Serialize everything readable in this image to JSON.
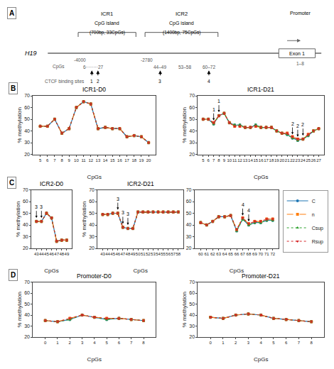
{
  "chart_data": [
    {
      "type": "diagram",
      "panel_label": "A",
      "annotations": [
        "H19",
        "Exon 1",
        "ICR1",
        "CpG island",
        "(700bp, 33CpGs)",
        "ICR2",
        "CpG island",
        "(1400bp, 75CpGs)",
        "Promoter",
        "-4000",
        "-2780",
        "1–8",
        "CpGs",
        "6········27",
        "44–49",
        "53–58",
        "60–72",
        "1",
        "2",
        "3",
        "4",
        "CTCF binding sites"
      ]
    },
    {
      "type": "line",
      "title": "ICR1-D0",
      "panel_label": "B",
      "xlabel": "CpGs",
      "ylabel": "% methylation",
      "grid": false,
      "x": [
        5,
        6,
        7,
        8,
        9,
        10,
        11,
        12,
        13,
        14,
        15,
        16,
        17,
        18,
        19,
        20
      ],
      "xlim": [
        4,
        21
      ],
      "xticks": [
        5,
        6,
        7,
        8,
        9,
        10,
        11,
        12,
        13,
        14,
        15,
        16,
        17,
        18,
        19,
        20
      ],
      "ylim": [
        20,
        70
      ],
      "yticks": [
        20,
        30,
        40,
        50,
        60,
        70
      ],
      "series": [
        {
          "name": "C",
          "color": "#1f77b4",
          "line_style": "solid",
          "marker": "circle",
          "error": 1,
          "values": [
            44,
            44,
            50,
            38,
            42,
            60,
            65,
            63,
            42,
            43,
            42,
            42,
            35,
            36,
            35,
            30
          ]
        },
        {
          "name": "n",
          "color": "#ff7f0e",
          "line_style": "dash",
          "marker": "square",
          "error": 1,
          "values": [
            44,
            44,
            50,
            38,
            42,
            60,
            65,
            63,
            42,
            43,
            42,
            42,
            35,
            36,
            35,
            30
          ]
        },
        {
          "name": "Csup",
          "color": "#2ca02c",
          "line_style": "dot",
          "marker": "triangle-up",
          "error": 1,
          "values": [
            44,
            44,
            50,
            38,
            42,
            60,
            65,
            63,
            42,
            43,
            42,
            42,
            35,
            36,
            35,
            30
          ]
        },
        {
          "name": "Rsup",
          "color": "#d62728",
          "line_style": "dot",
          "marker": "triangle-down",
          "error": 1,
          "values": [
            44,
            44,
            50,
            38,
            42,
            60,
            65,
            63,
            42,
            43,
            42,
            42,
            35,
            36,
            35,
            30
          ]
        }
      ]
    },
    {
      "type": "line",
      "title": "ICR1-D21",
      "xlabel": "CpGs",
      "ylabel": "% methylation",
      "grid": false,
      "x": [
        5,
        6,
        7,
        8,
        9,
        10,
        11,
        12,
        13,
        14,
        15,
        16,
        17,
        18,
        19,
        20,
        21,
        22,
        23,
        24,
        25,
        26,
        27
      ],
      "xlim": [
        4,
        28
      ],
      "xticks": [
        5,
        6,
        7,
        8,
        9,
        10,
        11,
        12,
        13,
        14,
        15,
        16,
        17,
        18,
        19,
        20,
        21,
        22,
        23,
        24,
        25,
        26,
        27
      ],
      "ylim": [
        20,
        70
      ],
      "yticks": [
        20,
        30,
        40,
        50,
        60,
        70
      ],
      "series": [
        {
          "name": "C",
          "color": "#1f77b4",
          "line_style": "solid",
          "marker": "circle",
          "error": 1,
          "values": [
            50,
            50,
            46,
            53,
            55,
            47,
            45,
            45,
            43,
            43,
            45,
            43,
            43,
            43,
            40,
            38,
            37,
            34,
            32,
            33,
            36,
            40,
            42
          ]
        },
        {
          "name": "n",
          "color": "#ff7f0e",
          "line_style": "dash",
          "marker": "square",
          "error": 1,
          "values": [
            50,
            50,
            47,
            53,
            55,
            47,
            44,
            44,
            43,
            43,
            44,
            43,
            43,
            43,
            40,
            38,
            38,
            35,
            33,
            33,
            37,
            40,
            42
          ]
        },
        {
          "name": "Csup",
          "color": "#2ca02c",
          "line_style": "dot",
          "marker": "triangle-up",
          "error": 1,
          "values": [
            50,
            50,
            46,
            53,
            55,
            47,
            45,
            45,
            43,
            43,
            45,
            43,
            43,
            43,
            40,
            38,
            37,
            34,
            32,
            33,
            36,
            40,
            42
          ]
        },
        {
          "name": "Rsup",
          "color": "#d62728",
          "line_style": "dot",
          "marker": "triangle-down",
          "error": 1,
          "values": [
            50,
            50,
            47,
            53,
            55,
            47,
            44,
            44,
            43,
            43,
            44,
            43,
            43,
            43,
            40,
            38,
            38,
            35,
            33,
            33,
            37,
            40,
            42
          ]
        }
      ],
      "annotations": [
        {
          "x": 7,
          "text": "1"
        },
        {
          "x": 8,
          "text": "1"
        },
        {
          "x": 22,
          "text": "2"
        },
        {
          "x": 23,
          "text": "2"
        },
        {
          "x": 24,
          "text": "2"
        }
      ]
    },
    {
      "type": "line",
      "title": "ICR2-D0",
      "panel_label": "C",
      "xlabel": "CpGs",
      "ylabel": "% methylation",
      "grid": false,
      "x": [
        43,
        44,
        45,
        46,
        47,
        48,
        49
      ],
      "xlim": [
        42,
        50
      ],
      "xticks": [
        43,
        44,
        45,
        46,
        47,
        48,
        49
      ],
      "ylim": [
        20,
        70
      ],
      "yticks": [
        20,
        30,
        40,
        50,
        60,
        70
      ],
      "series": [
        {
          "name": "C",
          "color": "#1f77b4",
          "line_style": "solid",
          "marker": "circle",
          "error": 1,
          "values": [
            43,
            43,
            50,
            46,
            26,
            27,
            27
          ]
        },
        {
          "name": "n",
          "color": "#ff7f0e",
          "line_style": "dash",
          "marker": "square",
          "error": 1,
          "values": [
            43,
            43,
            50,
            46,
            26,
            27,
            27
          ]
        },
        {
          "name": "Csup",
          "color": "#2ca02c",
          "line_style": "dot",
          "marker": "triangle-up",
          "error": 1,
          "values": [
            43,
            43,
            50,
            46,
            26,
            27,
            27
          ]
        },
        {
          "name": "Rsup",
          "color": "#d62728",
          "line_style": "dot",
          "marker": "triangle-down",
          "error": 1,
          "values": [
            43,
            43,
            50,
            46,
            26,
            27,
            27
          ]
        }
      ],
      "annotations": [
        {
          "x": 43,
          "text": "3"
        },
        {
          "x": 44,
          "text": "3"
        }
      ]
    },
    {
      "type": "line",
      "title": "ICR2-D21",
      "xlabel": "CpGs",
      "ylabel": "% methylation",
      "grid": false,
      "x": [
        43,
        44,
        45,
        46,
        47,
        48,
        49,
        50,
        51,
        52,
        53,
        54,
        55,
        56,
        57,
        58
      ],
      "xlim": [
        42,
        59
      ],
      "xticks": [
        43,
        44,
        45,
        46,
        47,
        48,
        49,
        50,
        51,
        52,
        53,
        54,
        55,
        56,
        57,
        58
      ],
      "ylim": [
        20,
        70
      ],
      "yticks": [
        20,
        30,
        40,
        50,
        60,
        70
      ],
      "series": [
        {
          "name": "C",
          "color": "#1f77b4",
          "line_style": "solid",
          "marker": "circle",
          "error": 1,
          "values": [
            49,
            49,
            50,
            50,
            38,
            37,
            37,
            51,
            51,
            51,
            51,
            51,
            51,
            51,
            51,
            51
          ]
        },
        {
          "name": "n",
          "color": "#ff7f0e",
          "line_style": "dash",
          "marker": "square",
          "error": 1,
          "values": [
            49,
            49,
            50,
            50,
            38,
            37,
            37,
            51,
            51,
            51,
            51,
            51,
            51,
            51,
            51,
            51
          ]
        },
        {
          "name": "Csup",
          "color": "#2ca02c",
          "line_style": "dot",
          "marker": "triangle-up",
          "error": 1,
          "values": [
            49,
            49,
            50,
            50,
            38,
            37,
            37,
            51,
            51,
            51,
            51,
            51,
            51,
            51,
            51,
            51
          ]
        },
        {
          "name": "Rsup",
          "color": "#d62728",
          "line_style": "dot",
          "marker": "triangle-down",
          "error": 1,
          "values": [
            49,
            49,
            50,
            50,
            38,
            37,
            37,
            51,
            51,
            51,
            51,
            51,
            51,
            51,
            51,
            51
          ]
        }
      ],
      "annotations": [
        {
          "x": 46,
          "text": "3"
        },
        {
          "x": 47,
          "text": "3"
        },
        {
          "x": 48,
          "text": "3"
        }
      ]
    },
    {
      "type": "line",
      "xlabel": "CpGs",
      "grid": false,
      "legend": "right",
      "x": [
        60,
        61,
        62,
        63,
        64,
        65,
        66,
        67,
        68,
        69,
        70,
        71,
        72
      ],
      "xlim": [
        59,
        73
      ],
      "xticks": [
        60,
        61,
        62,
        63,
        64,
        65,
        66,
        67,
        68,
        69,
        70,
        71,
        72
      ],
      "ylim": [
        20,
        70
      ],
      "yticks": [
        20,
        30,
        40,
        50,
        60,
        70
      ],
      "series": [
        {
          "name": "C",
          "color": "#1f77b4",
          "line_style": "solid",
          "marker": "circle",
          "error": 1,
          "values": [
            42,
            40,
            43,
            47,
            47,
            48,
            35,
            45,
            40,
            42,
            42,
            44,
            44
          ]
        },
        {
          "name": "n",
          "color": "#ff7f0e",
          "line_style": "dash",
          "marker": "square",
          "error": 1,
          "values": [
            42,
            40,
            43,
            47,
            47,
            48,
            36,
            46,
            41,
            43,
            43,
            45,
            45
          ]
        },
        {
          "name": "Csup",
          "color": "#2ca02c",
          "line_style": "dot",
          "marker": "triangle-up",
          "error": 1,
          "values": [
            42,
            40,
            43,
            47,
            47,
            48,
            35,
            45,
            40,
            42,
            42,
            44,
            44
          ]
        },
        {
          "name": "Rsup",
          "color": "#d62728",
          "line_style": "dot",
          "marker": "triangle-down",
          "error": 1,
          "values": [
            42,
            40,
            43,
            47,
            47,
            48,
            36,
            46,
            41,
            43,
            43,
            45,
            45
          ]
        }
      ],
      "annotations": [
        {
          "x": 67,
          "text": "4"
        },
        {
          "x": 68,
          "text": "4"
        }
      ]
    },
    {
      "type": "line",
      "title": "Promoter-D0",
      "panel_label": "D",
      "xlabel": "CpGs",
      "ylabel": "% methylation",
      "grid": false,
      "x": [
        0,
        1,
        2,
        3,
        4,
        5,
        6,
        7,
        8
      ],
      "xlim": [
        -1,
        9
      ],
      "xticks": [
        0,
        1,
        2,
        3,
        4,
        5,
        6,
        7,
        8
      ],
      "ylim": [
        20,
        70
      ],
      "yticks": [
        20,
        30,
        40,
        50,
        60,
        70
      ],
      "series": [
        {
          "name": "C",
          "color": "#1f77b4",
          "line_style": "solid",
          "marker": "circle",
          "error": 1,
          "values": [
            35,
            34,
            36,
            40,
            38,
            36,
            37,
            36,
            35
          ]
        },
        {
          "name": "n",
          "color": "#ff7f0e",
          "line_style": "dash",
          "marker": "square",
          "error": 1,
          "values": [
            35,
            34,
            37,
            40,
            38,
            37,
            37,
            36,
            35
          ]
        },
        {
          "name": "Csup",
          "color": "#2ca02c",
          "line_style": "dot",
          "marker": "triangle-up",
          "error": 1,
          "values": [
            35,
            34,
            36,
            40,
            38,
            36,
            37,
            36,
            35
          ]
        },
        {
          "name": "Rsup",
          "color": "#d62728",
          "line_style": "dot",
          "marker": "triangle-down",
          "error": 1,
          "values": [
            35,
            34,
            37,
            40,
            38,
            37,
            37,
            36,
            35
          ]
        }
      ]
    },
    {
      "type": "line",
      "title": "Promoter-D21",
      "xlabel": "CpGs",
      "ylabel": "% methylation",
      "grid": false,
      "x": [
        0,
        1,
        2,
        3,
        4,
        5,
        6,
        7,
        8
      ],
      "xlim": [
        -1,
        9
      ],
      "xticks": [
        0,
        1,
        2,
        3,
        4,
        5,
        6,
        7,
        8
      ],
      "ylim": [
        20,
        70
      ],
      "yticks": [
        20,
        30,
        40,
        50,
        60,
        70
      ],
      "series": [
        {
          "name": "C",
          "color": "#1f77b4",
          "line_style": "solid",
          "marker": "circle",
          "error": 1,
          "values": [
            38,
            37,
            40,
            41,
            40,
            37,
            36,
            35,
            34
          ]
        },
        {
          "name": "n",
          "color": "#ff7f0e",
          "line_style": "dash",
          "marker": "square",
          "error": 1,
          "values": [
            38,
            37,
            40,
            41,
            40,
            37,
            36,
            35,
            34
          ]
        },
        {
          "name": "Csup",
          "color": "#2ca02c",
          "line_style": "dot",
          "marker": "triangle-up",
          "error": 1,
          "values": [
            38,
            37,
            40,
            41,
            40,
            37,
            36,
            35,
            34
          ]
        },
        {
          "name": "Rsup",
          "color": "#d62728",
          "line_style": "dot",
          "marker": "triangle-down",
          "error": 1,
          "values": [
            38,
            37,
            40,
            41,
            40,
            37,
            36,
            35,
            34
          ]
        }
      ]
    }
  ]
}
